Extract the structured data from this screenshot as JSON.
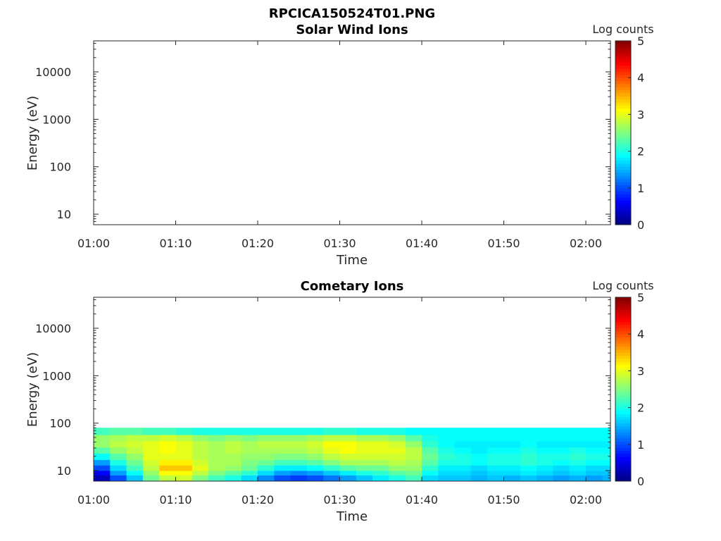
{
  "figure": {
    "filename": "RPCICA150524T01.PNG"
  },
  "chart_data": [
    {
      "type": "heatmap",
      "title": "Solar Wind Ions",
      "xlabel": "Time",
      "ylabel": "Energy (eV)",
      "x_tick_labels": [
        "01:00",
        "01:10",
        "01:20",
        "01:30",
        "01:40",
        "01:50",
        "02:00"
      ],
      "x_range": [
        "01:00",
        "02:03"
      ],
      "y_scale": "log",
      "y_tick_labels": [
        "10",
        "100",
        "1000",
        "10000"
      ],
      "y_tick_values": [
        10,
        100,
        1000,
        10000
      ],
      "y_range": [
        6,
        45000
      ],
      "colorbar": {
        "label": "Log counts",
        "range": [
          0,
          5
        ],
        "ticks": [
          "0",
          "1",
          "2",
          "3",
          "4",
          "5"
        ],
        "colormap": "jet"
      },
      "data": []
    },
    {
      "type": "heatmap",
      "title": "Cometary Ions",
      "xlabel": "Time",
      "ylabel": "Energy (eV)",
      "x_tick_labels": [
        "01:00",
        "01:10",
        "01:20",
        "01:30",
        "01:40",
        "01:50",
        "02:00"
      ],
      "x_range": [
        "01:00",
        "02:03"
      ],
      "y_scale": "log",
      "y_tick_labels": [
        "10",
        "100",
        "1000",
        "10000"
      ],
      "y_tick_values": [
        10,
        100,
        1000,
        10000
      ],
      "y_range": [
        6,
        45000
      ],
      "colorbar": {
        "label": "Log counts",
        "range": [
          0,
          5
        ],
        "ticks": [
          "0",
          "1",
          "2",
          "3",
          "4",
          "5"
        ],
        "colormap": "jet"
      },
      "energy_bands_eV": [
        [
          6,
          8
        ],
        [
          8,
          10
        ],
        [
          10,
          13
        ],
        [
          13,
          17
        ],
        [
          17,
          23
        ],
        [
          23,
          31
        ],
        [
          31,
          42
        ],
        [
          42,
          57
        ],
        [
          57,
          80
        ]
      ],
      "time_bins_start": [
        "01:00",
        "01:02",
        "01:04",
        "01:06",
        "01:08",
        "01:10",
        "01:12",
        "01:14",
        "01:16",
        "01:18",
        "01:20",
        "01:22",
        "01:24",
        "01:26",
        "01:28",
        "01:30",
        "01:32",
        "01:34",
        "01:36",
        "01:38",
        "01:40",
        "01:42",
        "01:44",
        "01:46",
        "01:48",
        "01:50",
        "01:52",
        "01:54",
        "01:56",
        "01:58",
        "02:00",
        "02:02"
      ],
      "time_bin_minutes": 2,
      "log_counts": [
        [
          0.3,
          1.0,
          1.6,
          2.4,
          2.8,
          2.9,
          2.5,
          2.2,
          2.0,
          1.7,
          1.3,
          1.0,
          0.9,
          1.0,
          1.2,
          1.4,
          1.6,
          1.8,
          2.0,
          2.2,
          1.7,
          1.6,
          1.6,
          1.5,
          1.6,
          1.5,
          1.6,
          1.5,
          1.4,
          1.5,
          1.4,
          1.5
        ],
        [
          0.6,
          1.4,
          1.9,
          2.6,
          3.1,
          3.1,
          2.8,
          2.5,
          2.3,
          2.1,
          1.7,
          1.4,
          1.3,
          1.4,
          1.6,
          1.8,
          2.0,
          2.1,
          2.3,
          2.4,
          1.9,
          1.7,
          1.7,
          1.6,
          1.7,
          1.7,
          1.8,
          1.7,
          1.6,
          1.7,
          1.6,
          1.6
        ],
        [
          1.0,
          1.7,
          2.2,
          2.8,
          3.4,
          3.4,
          3.0,
          2.7,
          2.6,
          2.4,
          2.1,
          1.8,
          1.8,
          1.9,
          2.1,
          2.3,
          2.4,
          2.4,
          2.6,
          2.6,
          2.1,
          1.8,
          1.8,
          1.7,
          1.8,
          1.8,
          1.9,
          1.8,
          1.7,
          1.8,
          1.7,
          1.7
        ],
        [
          1.4,
          2.0,
          2.4,
          2.9,
          3.2,
          3.2,
          2.9,
          2.7,
          2.7,
          2.5,
          2.4,
          2.2,
          2.2,
          2.3,
          2.5,
          2.7,
          2.7,
          2.7,
          2.8,
          2.7,
          2.3,
          2.0,
          2.0,
          1.9,
          2.0,
          2.0,
          2.1,
          2.0,
          1.9,
          2.0,
          1.9,
          1.9
        ],
        [
          1.9,
          2.3,
          2.6,
          3.0,
          3.0,
          3.0,
          2.8,
          2.7,
          2.7,
          2.6,
          2.6,
          2.5,
          2.5,
          2.6,
          2.8,
          2.9,
          2.9,
          2.9,
          2.9,
          2.8,
          2.4,
          2.1,
          2.0,
          1.9,
          2.0,
          2.0,
          2.1,
          2.0,
          2.0,
          2.1,
          2.0,
          2.0
        ],
        [
          2.3,
          2.6,
          2.8,
          3.0,
          3.1,
          3.0,
          2.8,
          2.7,
          2.8,
          2.7,
          2.7,
          2.7,
          2.7,
          2.8,
          3.0,
          3.1,
          3.0,
          3.0,
          3.0,
          2.8,
          2.3,
          2.0,
          1.9,
          1.8,
          1.9,
          1.9,
          2.0,
          1.9,
          1.9,
          2.0,
          1.9,
          1.9
        ],
        [
          2.6,
          2.8,
          2.9,
          3.0,
          3.1,
          3.0,
          2.8,
          2.7,
          2.8,
          2.7,
          2.8,
          2.8,
          2.8,
          2.9,
          3.1,
          3.1,
          3.0,
          3.0,
          2.9,
          2.6,
          2.1,
          1.9,
          1.8,
          1.8,
          1.8,
          1.8,
          1.9,
          1.8,
          1.8,
          1.8,
          1.8,
          1.8
        ],
        [
          2.6,
          2.7,
          2.8,
          2.8,
          2.9,
          2.8,
          2.6,
          2.5,
          2.6,
          2.5,
          2.6,
          2.6,
          2.6,
          2.7,
          2.8,
          2.8,
          2.7,
          2.7,
          2.6,
          2.3,
          2.0,
          1.9,
          1.9,
          1.9,
          1.9,
          1.9,
          1.9,
          1.9,
          1.9,
          1.9,
          1.9,
          1.9
        ],
        [
          2.2,
          2.3,
          2.3,
          2.2,
          2.2,
          2.1,
          2.0,
          2.0,
          2.0,
          2.0,
          2.0,
          2.0,
          2.0,
          2.0,
          2.1,
          2.1,
          2.0,
          2.0,
          2.0,
          1.9,
          1.9,
          1.9,
          1.9,
          1.9,
          1.9,
          1.9,
          1.9,
          1.9,
          1.9,
          1.9,
          1.9,
          1.9
        ]
      ]
    }
  ]
}
